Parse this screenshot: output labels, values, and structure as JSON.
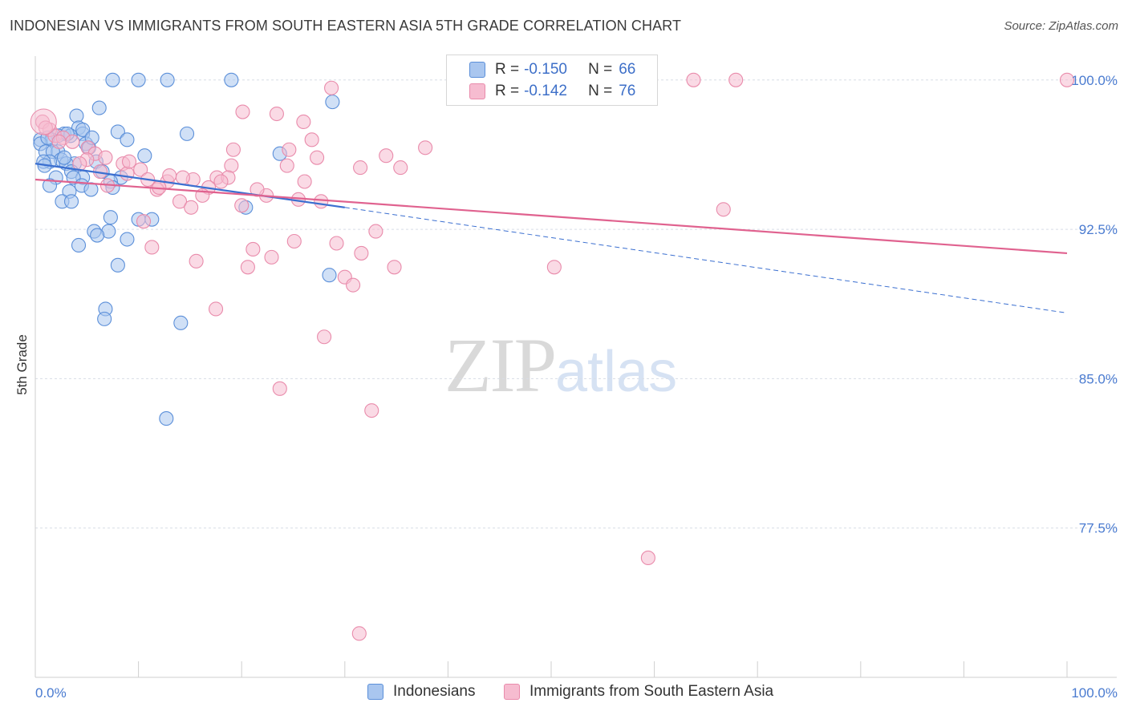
{
  "title": "INDONESIAN VS IMMIGRANTS FROM SOUTH EASTERN ASIA 5TH GRADE CORRELATION CHART",
  "source": "Source: ZipAtlas.com",
  "watermark": {
    "zip": "ZIP",
    "atlas": "atlas"
  },
  "colors": {
    "blue_fill": "#a9c6ef",
    "blue_stroke": "#5b8fd9",
    "blue_line": "#3b6fd0",
    "pink_fill": "#f6bcd0",
    "pink_stroke": "#e98bab",
    "pink_line": "#e0628f",
    "grid": "#d7dde6",
    "tick_text": "#4a7bd0"
  },
  "legend_top": {
    "rows": [
      {
        "r_label": "R =",
        "r_value": "-0.150",
        "n_label": "N =",
        "n_value": "66"
      },
      {
        "r_label": "R =",
        "r_value": "-0.142",
        "n_label": "N =",
        "n_value": "76"
      }
    ]
  },
  "legend_bottom": {
    "items": [
      "Indonesians",
      "Immigrants from South Eastern Asia"
    ]
  },
  "chart_data": {
    "type": "scatter",
    "title": "INDONESIAN VS IMMIGRANTS FROM SOUTH EASTERN ASIA 5TH GRADE CORRELATION CHART",
    "xlabel": "",
    "ylabel": "5th Grade",
    "xlim": [
      0,
      100
    ],
    "ylim": [
      70.0,
      101.2
    ],
    "x_tick_labels": [
      "0.0%",
      "100.0%"
    ],
    "y_ticks": [
      100.0,
      92.5,
      85.0,
      77.5
    ],
    "y_tick_labels": [
      "100.0%",
      "92.5%",
      "85.0%",
      "77.5%"
    ],
    "grid": "horizontal dashed",
    "series": [
      {
        "name": "Indonesians",
        "color": "blue",
        "r": -0.15,
        "n": 66,
        "trend": {
          "x0": 0,
          "y0": 95.8,
          "x1": 30,
          "y1": 93.6,
          "x_end": 100,
          "y_end": 88.3
        },
        "points": [
          [
            7.5,
            100.0
          ],
          [
            10.0,
            100.0
          ],
          [
            12.8,
            100.0
          ],
          [
            19.0,
            100.0
          ],
          [
            28.8,
            98.9
          ],
          [
            6.2,
            98.6
          ],
          [
            4.0,
            98.2
          ],
          [
            4.2,
            97.6
          ],
          [
            8.0,
            97.4
          ],
          [
            14.7,
            97.3
          ],
          [
            4.6,
            97.3
          ],
          [
            2.8,
            97.3
          ],
          [
            2.2,
            97.2
          ],
          [
            3.4,
            97.2
          ],
          [
            0.5,
            97.0
          ],
          [
            1.6,
            97.0
          ],
          [
            8.9,
            97.0
          ],
          [
            4.9,
            96.8
          ],
          [
            0.5,
            96.8
          ],
          [
            5.2,
            96.6
          ],
          [
            1.0,
            96.4
          ],
          [
            2.2,
            96.4
          ],
          [
            1.7,
            96.4
          ],
          [
            10.6,
            96.2
          ],
          [
            23.7,
            96.3
          ],
          [
            2.5,
            96.0
          ],
          [
            1.4,
            95.9
          ],
          [
            5.9,
            95.9
          ],
          [
            0.8,
            95.9
          ],
          [
            3.8,
            95.8
          ],
          [
            3.0,
            95.8
          ],
          [
            3.5,
            95.4
          ],
          [
            6.5,
            95.4
          ],
          [
            4.6,
            95.1
          ],
          [
            3.7,
            95.1
          ],
          [
            2.0,
            95.1
          ],
          [
            8.3,
            95.1
          ],
          [
            7.3,
            94.9
          ],
          [
            1.4,
            94.7
          ],
          [
            4.5,
            94.7
          ],
          [
            5.4,
            94.5
          ],
          [
            3.3,
            94.4
          ],
          [
            7.5,
            94.6
          ],
          [
            2.6,
            93.9
          ],
          [
            3.5,
            93.9
          ],
          [
            20.4,
            93.6
          ],
          [
            7.3,
            93.1
          ],
          [
            10.0,
            93.0
          ],
          [
            11.3,
            93.0
          ],
          [
            5.7,
            92.4
          ],
          [
            7.1,
            92.4
          ],
          [
            6.0,
            92.2
          ],
          [
            8.9,
            92.0
          ],
          [
            4.2,
            91.7
          ],
          [
            8.0,
            90.7
          ],
          [
            28.5,
            90.2
          ],
          [
            6.8,
            88.5
          ],
          [
            6.7,
            88.0
          ],
          [
            14.1,
            87.8
          ],
          [
            12.7,
            83.0
          ],
          [
            4.6,
            97.5
          ],
          [
            1.2,
            97.1
          ],
          [
            3.1,
            97.3
          ],
          [
            5.5,
            97.1
          ],
          [
            2.8,
            96.1
          ],
          [
            0.9,
            95.7
          ]
        ]
      },
      {
        "name": "Immigrants from South Eastern Asia",
        "color": "pink",
        "r": -0.142,
        "n": 76,
        "trend": {
          "x0": 0,
          "y0": 95.0,
          "x1": 100,
          "y1": 91.3
        },
        "points": [
          [
            63.8,
            100.0
          ],
          [
            67.9,
            100.0
          ],
          [
            100.0,
            100.0
          ],
          [
            28.7,
            99.6
          ],
          [
            20.1,
            98.4
          ],
          [
            23.4,
            98.3
          ],
          [
            26.0,
            97.9
          ],
          [
            0.7,
            97.9
          ],
          [
            1.4,
            97.5
          ],
          [
            1.9,
            97.2
          ],
          [
            2.7,
            97.1
          ],
          [
            3.6,
            96.9
          ],
          [
            26.8,
            97.0
          ],
          [
            5.1,
            96.6
          ],
          [
            37.8,
            96.6
          ],
          [
            19.2,
            96.5
          ],
          [
            24.6,
            96.5
          ],
          [
            5.8,
            96.3
          ],
          [
            34.0,
            96.2
          ],
          [
            27.3,
            96.1
          ],
          [
            5.0,
            96.0
          ],
          [
            4.3,
            95.8
          ],
          [
            8.5,
            95.8
          ],
          [
            19.0,
            95.7
          ],
          [
            24.4,
            95.7
          ],
          [
            10.2,
            95.5
          ],
          [
            35.4,
            95.6
          ],
          [
            31.5,
            95.6
          ],
          [
            6.3,
            95.4
          ],
          [
            8.9,
            95.3
          ],
          [
            15.3,
            95.0
          ],
          [
            17.6,
            95.1
          ],
          [
            14.3,
            95.1
          ],
          [
            18.7,
            95.1
          ],
          [
            10.9,
            95.0
          ],
          [
            26.1,
            94.9
          ],
          [
            12.8,
            94.9
          ],
          [
            7.0,
            94.7
          ],
          [
            16.8,
            94.6
          ],
          [
            11.8,
            94.5
          ],
          [
            22.4,
            94.2
          ],
          [
            16.2,
            94.2
          ],
          [
            14.0,
            93.9
          ],
          [
            27.7,
            93.9
          ],
          [
            20.0,
            93.7
          ],
          [
            15.1,
            93.6
          ],
          [
            66.7,
            93.5
          ],
          [
            10.5,
            92.9
          ],
          [
            33.0,
            92.4
          ],
          [
            25.1,
            91.9
          ],
          [
            29.2,
            91.8
          ],
          [
            11.3,
            91.6
          ],
          [
            21.1,
            91.5
          ],
          [
            31.6,
            91.3
          ],
          [
            22.9,
            91.1
          ],
          [
            15.6,
            90.9
          ],
          [
            20.6,
            90.6
          ],
          [
            34.8,
            90.6
          ],
          [
            50.3,
            90.6
          ],
          [
            30.0,
            90.1
          ],
          [
            30.8,
            89.7
          ],
          [
            17.5,
            88.5
          ],
          [
            28.0,
            87.1
          ],
          [
            23.7,
            84.5
          ],
          [
            32.6,
            83.4
          ],
          [
            59.4,
            76.0
          ],
          [
            31.4,
            72.2
          ],
          [
            1.0,
            97.6
          ],
          [
            2.3,
            96.9
          ],
          [
            6.8,
            96.1
          ],
          [
            9.1,
            95.9
          ],
          [
            13.0,
            95.2
          ],
          [
            18.0,
            94.9
          ],
          [
            21.5,
            94.5
          ],
          [
            25.5,
            94.0
          ],
          [
            12.0,
            94.6
          ]
        ]
      }
    ]
  }
}
